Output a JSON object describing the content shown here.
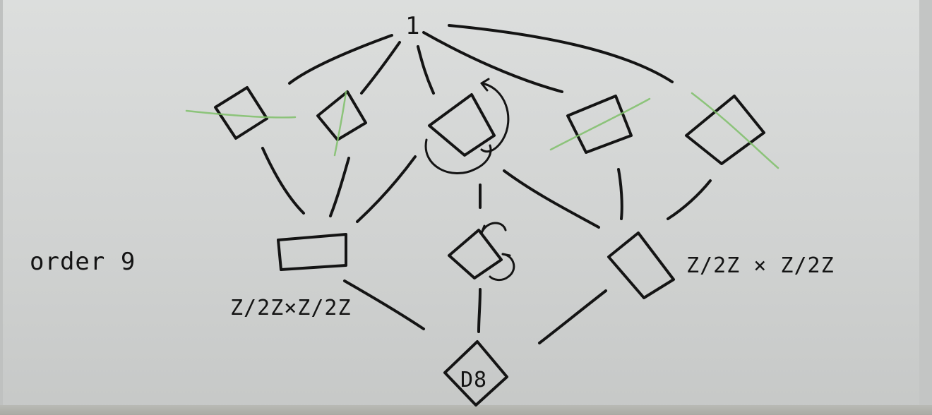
{
  "diagram": {
    "top_node_label": "1",
    "left_annotation": "order 9",
    "label_left_middle": "Z/2Z×Z/2Z",
    "label_right_middle": "Z/2Z × Z/2Z",
    "bottom_node_label": "D8",
    "strike_color": "#7fbf6a",
    "ink_color": "#141414"
  }
}
